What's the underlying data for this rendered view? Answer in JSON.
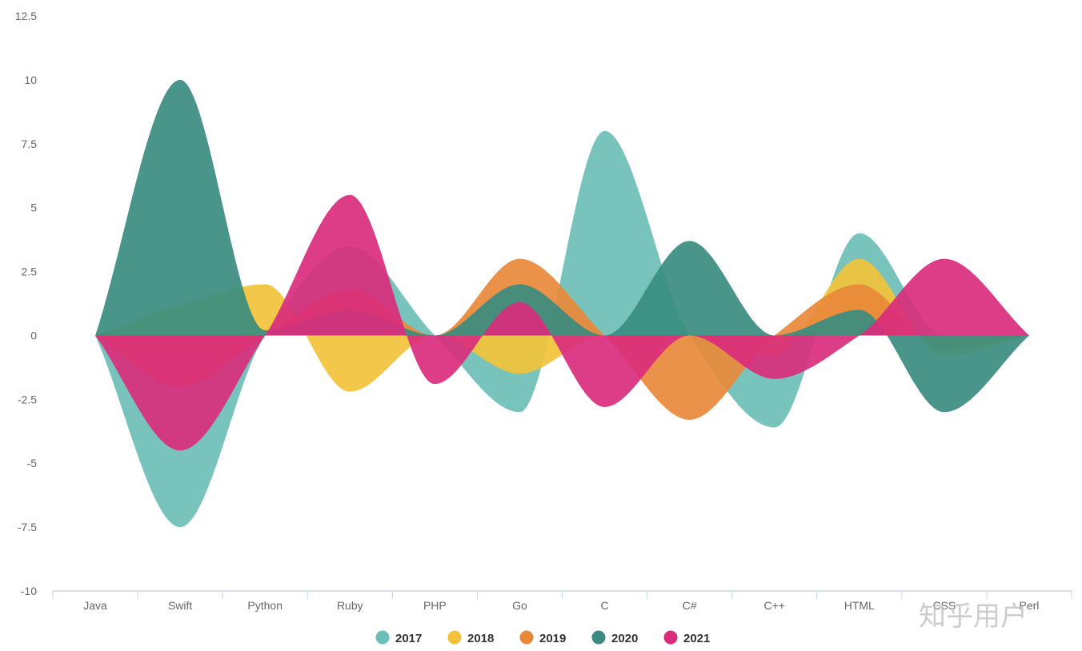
{
  "chart_data": {
    "type": "area",
    "categories": [
      "Java",
      "Swift",
      "Python",
      "Ruby",
      "PHP",
      "Go",
      "C",
      "C#",
      "C++",
      "HTML",
      "CSS",
      "Perl"
    ],
    "ylim": [
      -10,
      12.5
    ],
    "yticks": [
      12.5,
      10,
      7.5,
      5,
      2.5,
      0,
      -2.5,
      -5,
      -7.5,
      -10
    ],
    "ytick_labels": [
      "12.5",
      "10",
      "7.5",
      "5",
      "2.5",
      "0",
      "-2.5",
      "-5",
      "-7.5",
      "-10"
    ],
    "grid": false,
    "legend": "bottom-center",
    "series": [
      {
        "name": "2017",
        "color": "#6cbfb6",
        "values": [
          0,
          -7.5,
          0,
          3.5,
          0,
          -3,
          8,
          0,
          -3.6,
          4,
          0,
          0
        ]
      },
      {
        "name": "2018",
        "color": "#f2c23a",
        "values": [
          0,
          1.2,
          2,
          -2.2,
          0,
          -1.5,
          0,
          0,
          -0.8,
          3,
          -0.8,
          0
        ]
      },
      {
        "name": "2019",
        "color": "#e8893a",
        "values": [
          0,
          -2,
          0,
          1.8,
          0,
          3,
          0,
          -3.3,
          0,
          2,
          -0.5,
          0
        ]
      },
      {
        "name": "2020",
        "color": "#3a8c80",
        "values": [
          0,
          10,
          0.2,
          1,
          0,
          2,
          0,
          3.7,
          0,
          1,
          -3,
          0
        ]
      },
      {
        "name": "2021",
        "color": "#d92c7c",
        "values": [
          0,
          -4.5,
          0,
          5.5,
          -1.9,
          1.3,
          -2.8,
          0,
          -1.7,
          0,
          3,
          0
        ]
      }
    ]
  },
  "watermark": "知乎用户"
}
